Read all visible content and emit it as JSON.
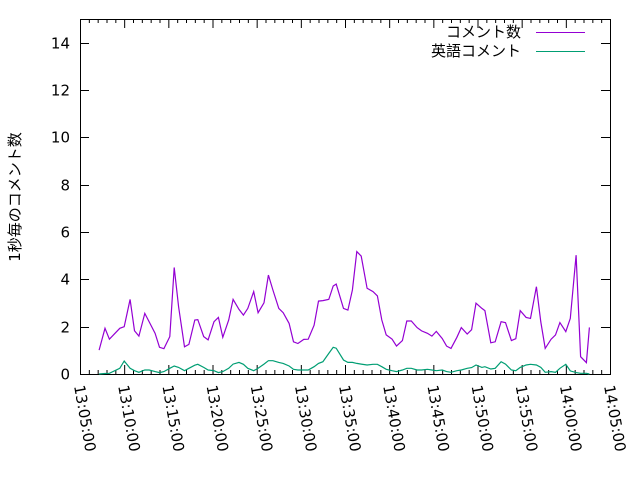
{
  "chart_data": {
    "type": "line",
    "title": "",
    "xlabel": "",
    "ylabel": "1秒毎のコメント数",
    "xlim": [
      "13:05:00",
      "14:05:00"
    ],
    "ylim": [
      0,
      15
    ],
    "x_ticks": [
      "13:05:00",
      "13:10:00",
      "13:15:00",
      "13:20:00",
      "13:25:00",
      "13:30:00",
      "13:35:00",
      "13:40:00",
      "13:45:00",
      "13:50:00",
      "13:55:00",
      "14:00:00",
      "14:05:00"
    ],
    "y_ticks": [
      "0",
      "2",
      "4",
      "6",
      "8",
      "10",
      "12",
      "14"
    ],
    "grid": false,
    "legend_position": "top-right",
    "x": [
      "13:07:10",
      "13:07:50",
      "13:08:20",
      "13:09:30",
      "13:10:00",
      "13:10:40",
      "13:11:10",
      "13:11:40",
      "13:12:20",
      "13:12:50",
      "13:13:30",
      "13:14:00",
      "13:14:30",
      "13:15:10",
      "13:15:40",
      "13:16:10",
      "13:16:50",
      "13:17:20",
      "13:18:00",
      "13:18:20",
      "13:19:00",
      "13:19:30",
      "13:20:10",
      "13:20:40",
      "13:21:10",
      "13:21:50",
      "13:22:20",
      "13:23:00",
      "13:23:30",
      "13:24:00",
      "13:24:40",
      "13:25:10",
      "13:25:50",
      "13:26:20",
      "13:26:50",
      "13:27:30",
      "13:28:00",
      "13:28:40",
      "13:29:10",
      "13:29:40",
      "13:30:20",
      "13:30:50",
      "13:31:30",
      "13:32:00",
      "13:32:30",
      "13:33:10",
      "13:33:40",
      "13:34:00",
      "13:34:50",
      "13:35:20",
      "13:35:50",
      "13:36:20",
      "13:36:50",
      "13:37:30",
      "13:38:10",
      "13:38:40",
      "13:39:10",
      "13:39:40",
      "13:40:20",
      "13:40:50",
      "13:41:30",
      "13:42:00",
      "13:42:30",
      "13:43:10",
      "13:43:40",
      "13:44:20",
      "13:44:50",
      "13:45:20",
      "13:46:00",
      "13:46:30",
      "13:47:00",
      "13:47:40",
      "13:48:10",
      "13:48:50",
      "13:49:20",
      "13:49:50",
      "13:50:30",
      "13:50:50",
      "13:51:30",
      "13:52:00",
      "13:52:40",
      "13:53:10",
      "13:53:50",
      "13:54:20",
      "13:54:50",
      "13:55:30",
      "13:56:00",
      "13:56:40",
      "13:57:10",
      "13:57:40",
      "13:58:20",
      "13:58:50",
      "13:59:20",
      "14:00:00",
      "14:00:30",
      "14:01:10",
      "14:01:40",
      "14:02:20",
      "14:02:40"
    ],
    "series": [
      {
        "name": "コメント数",
        "color": "#9400d3",
        "values": [
          1.01,
          1.93,
          1.47,
          1.93,
          2.0,
          3.15,
          1.83,
          1.6,
          2.56,
          2.2,
          1.72,
          1.13,
          1.07,
          1.58,
          4.5,
          2.84,
          1.15,
          1.25,
          2.28,
          2.3,
          1.58,
          1.44,
          2.21,
          2.39,
          1.55,
          2.28,
          3.15,
          2.73,
          2.49,
          2.77,
          3.48,
          2.59,
          3.01,
          4.18,
          3.55,
          2.77,
          2.59,
          2.14,
          1.36,
          1.29,
          1.46,
          1.47,
          2.06,
          3.08,
          3.1,
          3.15,
          3.72,
          3.8,
          2.77,
          2.7,
          3.55,
          5.17,
          4.98,
          3.62,
          3.48,
          3.3,
          2.28,
          1.65,
          1.47,
          1.18,
          1.41,
          2.24,
          2.24,
          1.96,
          1.82,
          1.72,
          1.6,
          1.8,
          1.5,
          1.18,
          1.08,
          1.55,
          1.96,
          1.69,
          1.87,
          2.99,
          2.77,
          2.68,
          1.32,
          1.36,
          2.21,
          2.17,
          1.41,
          1.49,
          2.68,
          2.39,
          2.35,
          3.69,
          2.2,
          1.08,
          1.47,
          1.65,
          2.17,
          1.79,
          2.35,
          5.02,
          0.73,
          0.48,
          1.97
        ]
      },
      {
        "name": "英語コメント",
        "color": "#009e73",
        "values": [
          0,
          0.02,
          0.03,
          0.24,
          0.55,
          0.24,
          0.14,
          0.07,
          0.17,
          0.17,
          0.1,
          0.06,
          0.1,
          0.24,
          0.34,
          0.28,
          0.14,
          0.24,
          0.37,
          0.41,
          0.28,
          0.17,
          0.14,
          0.06,
          0.1,
          0.24,
          0.42,
          0.49,
          0.41,
          0.24,
          0.14,
          0.24,
          0.42,
          0.56,
          0.56,
          0.49,
          0.45,
          0.34,
          0.2,
          0.17,
          0.17,
          0.17,
          0.31,
          0.45,
          0.52,
          0.87,
          1.13,
          1.09,
          0.59,
          0.49,
          0.49,
          0.45,
          0.42,
          0.38,
          0.41,
          0.41,
          0.31,
          0.2,
          0.14,
          0.1,
          0.17,
          0.24,
          0.24,
          0.17,
          0.17,
          0.2,
          0.17,
          0.14,
          0.17,
          0.1,
          0.07,
          0.14,
          0.17,
          0.24,
          0.27,
          0.38,
          0.28,
          0.31,
          0.21,
          0.24,
          0.52,
          0.42,
          0.17,
          0.14,
          0.28,
          0.38,
          0.41,
          0.38,
          0.28,
          0.07,
          0.1,
          0.07,
          0.24,
          0.41,
          0.13,
          0.06,
          0.03,
          0.03,
          0
        ]
      }
    ]
  }
}
